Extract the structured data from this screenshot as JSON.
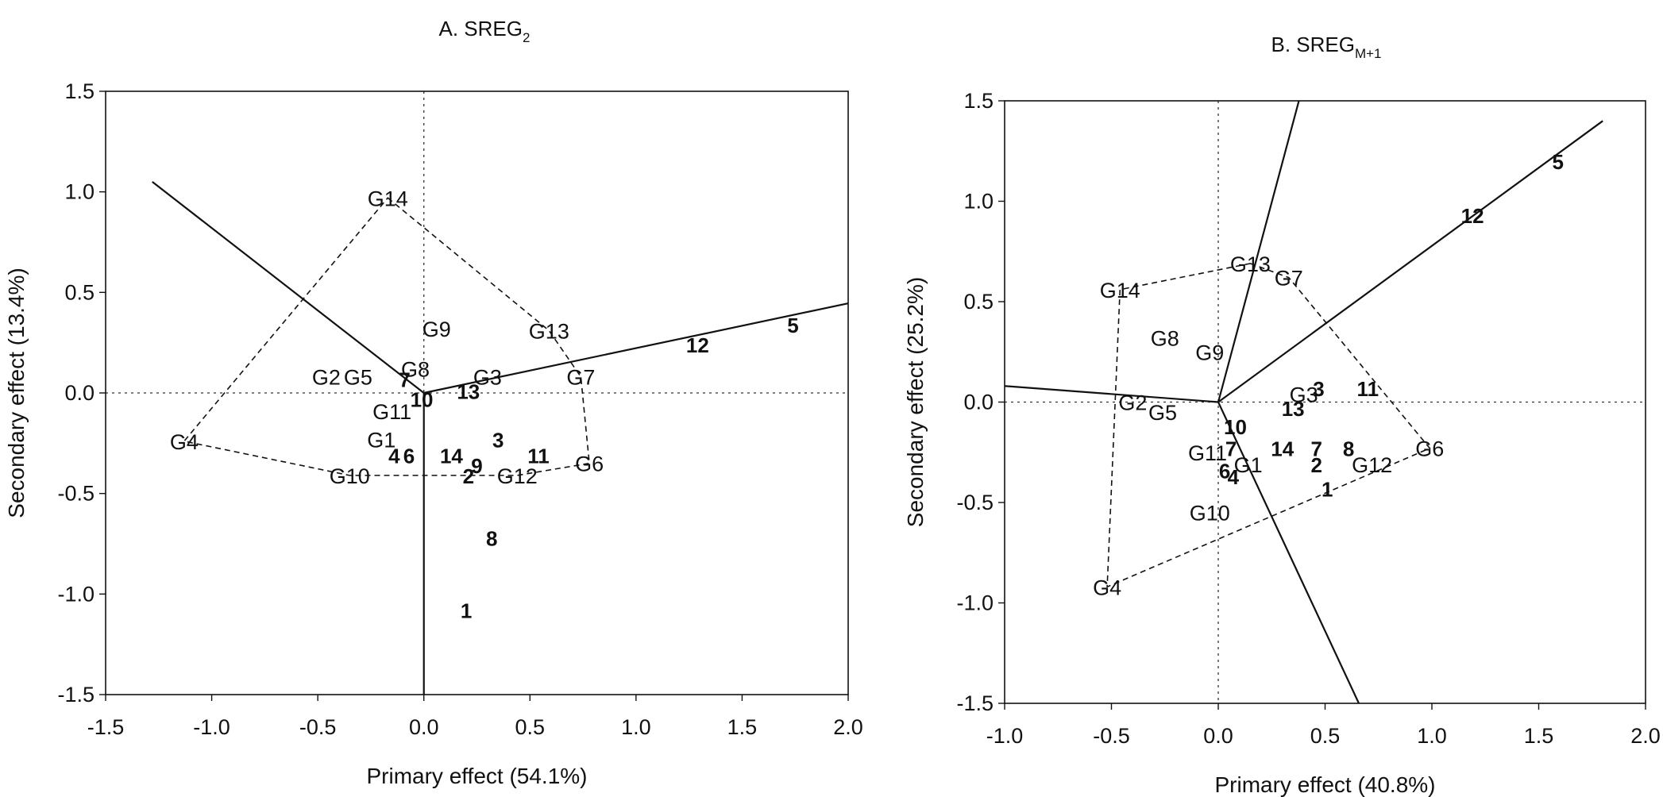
{
  "chart_data": [
    {
      "type": "scatter",
      "title": "A. SREG",
      "title_subscript": "2",
      "xlabel": "Primary effect (54.1%)",
      "ylabel": "Secondary effect (13.4%)",
      "xlim": [
        -1.5,
        2.0
      ],
      "ylim": [
        -1.5,
        1.5
      ],
      "x_ticks": [
        "-1.5",
        "-1.0",
        "-0.5",
        "0.0",
        "0.5",
        "1.0",
        "1.5",
        "2.0"
      ],
      "y_ticks": [
        "1.5",
        "1.0",
        "0.5",
        "0.0",
        "-0.5",
        "-1.0",
        "-1.5"
      ],
      "grid": false,
      "genotypes": [
        {
          "label": "G14",
          "x": -0.17,
          "y": 0.97
        },
        {
          "label": "G9",
          "x": 0.06,
          "y": 0.32
        },
        {
          "label": "G13",
          "x": 0.59,
          "y": 0.31
        },
        {
          "label": "G8",
          "x": -0.04,
          "y": 0.12
        },
        {
          "label": "G2",
          "x": -0.46,
          "y": 0.08
        },
        {
          "label": "G5",
          "x": -0.31,
          "y": 0.08
        },
        {
          "label": "G3",
          "x": 0.3,
          "y": 0.08
        },
        {
          "label": "G7",
          "x": 0.74,
          "y": 0.08
        },
        {
          "label": "G11",
          "x": -0.15,
          "y": -0.09
        },
        {
          "label": "G4",
          "x": -1.13,
          "y": -0.24
        },
        {
          "label": "G1",
          "x": -0.2,
          "y": -0.23
        },
        {
          "label": "G6",
          "x": 0.78,
          "y": -0.35
        },
        {
          "label": "G12",
          "x": 0.44,
          "y": -0.41
        },
        {
          "label": "G10",
          "x": -0.35,
          "y": -0.41
        }
      ],
      "environments": [
        {
          "label": "5",
          "x": 1.74,
          "y": 0.34
        },
        {
          "label": "12",
          "x": 1.29,
          "y": 0.24
        },
        {
          "label": "7",
          "x": -0.09,
          "y": 0.07
        },
        {
          "label": "10",
          "x": -0.01,
          "y": -0.03
        },
        {
          "label": "13",
          "x": 0.21,
          "y": 0.01
        },
        {
          "label": "3",
          "x": 0.35,
          "y": -0.23
        },
        {
          "label": "11",
          "x": 0.54,
          "y": -0.31
        },
        {
          "label": "4",
          "x": -0.14,
          "y": -0.31
        },
        {
          "label": "6",
          "x": -0.07,
          "y": -0.31
        },
        {
          "label": "14",
          "x": 0.13,
          "y": -0.31
        },
        {
          "label": "9",
          "x": 0.25,
          "y": -0.36
        },
        {
          "label": "2",
          "x": 0.21,
          "y": -0.41
        },
        {
          "label": "8",
          "x": 0.32,
          "y": -0.72
        },
        {
          "label": "1",
          "x": 0.2,
          "y": -1.08
        }
      ],
      "hull": [
        "G14",
        "G13",
        "G7",
        "G6",
        "G12",
        "G10",
        "G4"
      ],
      "rays": [
        {
          "x": -1.28,
          "y": 1.05
        },
        {
          "x": 2.02,
          "y": 0.45
        },
        {
          "x": 0.0,
          "y": -1.55
        }
      ]
    },
    {
      "type": "scatter",
      "title": "B. SREG",
      "title_subscript": "M+1",
      "xlabel": "Primary effect (40.8%)",
      "ylabel": "Secondary effect (25.2%)",
      "xlim": [
        -1.0,
        2.0
      ],
      "ylim": [
        -1.5,
        1.5
      ],
      "x_ticks": [
        "-1.0",
        "-0.5",
        "0.0",
        "0.5",
        "1.0",
        "1.5",
        "2.0"
      ],
      "y_ticks": [
        "1.5",
        "1.0",
        "0.5",
        "0.0",
        "-0.5",
        "-1.0",
        "-1.5"
      ],
      "grid": false,
      "genotypes": [
        {
          "label": "G13",
          "x": 0.15,
          "y": 0.69
        },
        {
          "label": "G7",
          "x": 0.33,
          "y": 0.62
        },
        {
          "label": "G14",
          "x": -0.46,
          "y": 0.56
        },
        {
          "label": "G8",
          "x": -0.25,
          "y": 0.32
        },
        {
          "label": "G9",
          "x": -0.04,
          "y": 0.25
        },
        {
          "label": "G3",
          "x": 0.4,
          "y": 0.04
        },
        {
          "label": "G2",
          "x": -0.4,
          "y": 0.0
        },
        {
          "label": "G5",
          "x": -0.26,
          "y": -0.05
        },
        {
          "label": "G6",
          "x": 0.99,
          "y": -0.23
        },
        {
          "label": "G11",
          "x": -0.05,
          "y": -0.25
        },
        {
          "label": "G1",
          "x": 0.14,
          "y": -0.31
        },
        {
          "label": "G12",
          "x": 0.72,
          "y": -0.31
        },
        {
          "label": "G10",
          "x": -0.04,
          "y": -0.55
        },
        {
          "label": "G4",
          "x": -0.52,
          "y": -0.92
        }
      ],
      "environments": [
        {
          "label": "5",
          "x": 1.59,
          "y": 1.2
        },
        {
          "label": "12",
          "x": 1.19,
          "y": 0.93
        },
        {
          "label": "3",
          "x": 0.47,
          "y": 0.07
        },
        {
          "label": "11",
          "x": 0.7,
          "y": 0.07
        },
        {
          "label": "13",
          "x": 0.35,
          "y": -0.03
        },
        {
          "label": "10",
          "x": 0.08,
          "y": -0.12
        },
        {
          "label": "7",
          "x": 0.06,
          "y": -0.23
        },
        {
          "label": "14",
          "x": 0.3,
          "y": -0.23
        },
        {
          "label": "7",
          "x": 0.46,
          "y": -0.23
        },
        {
          "label": "8",
          "x": 0.61,
          "y": -0.23
        },
        {
          "label": "2",
          "x": 0.46,
          "y": -0.31
        },
        {
          "label": "6",
          "x": 0.03,
          "y": -0.34
        },
        {
          "label": "4",
          "x": 0.07,
          "y": -0.37
        },
        {
          "label": "1",
          "x": 0.51,
          "y": -0.43
        }
      ],
      "hull": [
        "G13",
        "G7",
        "G6",
        "G4",
        "G14"
      ],
      "rays": [
        {
          "x": 1.8,
          "y": 1.4
        },
        {
          "x": 0.39,
          "y": 1.55
        },
        {
          "x": -1.0,
          "y": 0.08
        },
        {
          "x": 0.68,
          "y": -1.55
        }
      ]
    }
  ]
}
